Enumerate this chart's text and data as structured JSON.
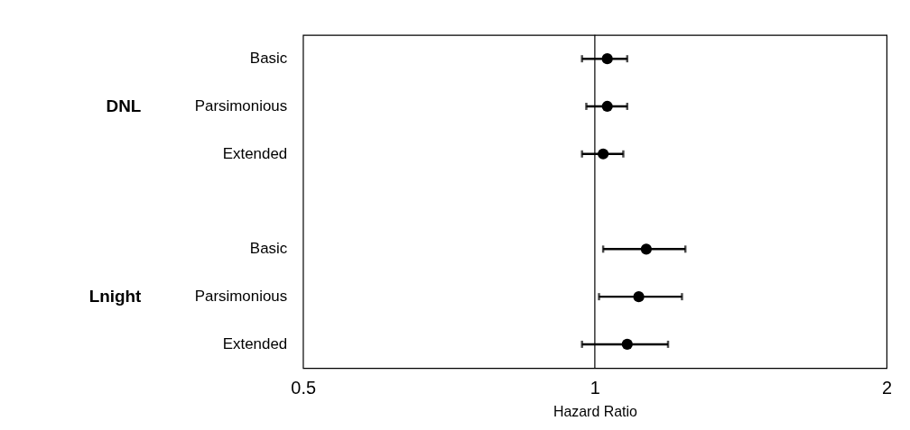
{
  "chart_data": {
    "type": "scatter",
    "orientation": "horizontal",
    "log": "x",
    "marker": "circle",
    "grid": false,
    "xlabel": "Hazard Ratio",
    "categories": [
      "Basic",
      "Parsimonious",
      "Extended",
      null,
      "Basic",
      "Parsimonious",
      "Extended"
    ],
    "series": [
      {
        "color": "#000000",
        "values": [
          1.03,
          1.03,
          1.02,
          null,
          1.13,
          1.11,
          1.08
        ],
        "errors": [
          [
            0.97,
            1.08
          ],
          [
            0.98,
            1.08
          ],
          [
            0.97,
            1.07
          ],
          null,
          [
            1.02,
            1.24
          ],
          [
            1.01,
            1.23
          ],
          [
            0.97,
            1.19
          ]
        ]
      }
    ],
    "xlim": [
      0.5,
      2
    ],
    "xticks": [
      0.5,
      1,
      2
    ],
    "ref_lines": [
      {
        "axis": "x",
        "value": 1,
        "color": "#000000"
      }
    ],
    "annotations": [
      "DNL",
      "Lnight"
    ]
  }
}
